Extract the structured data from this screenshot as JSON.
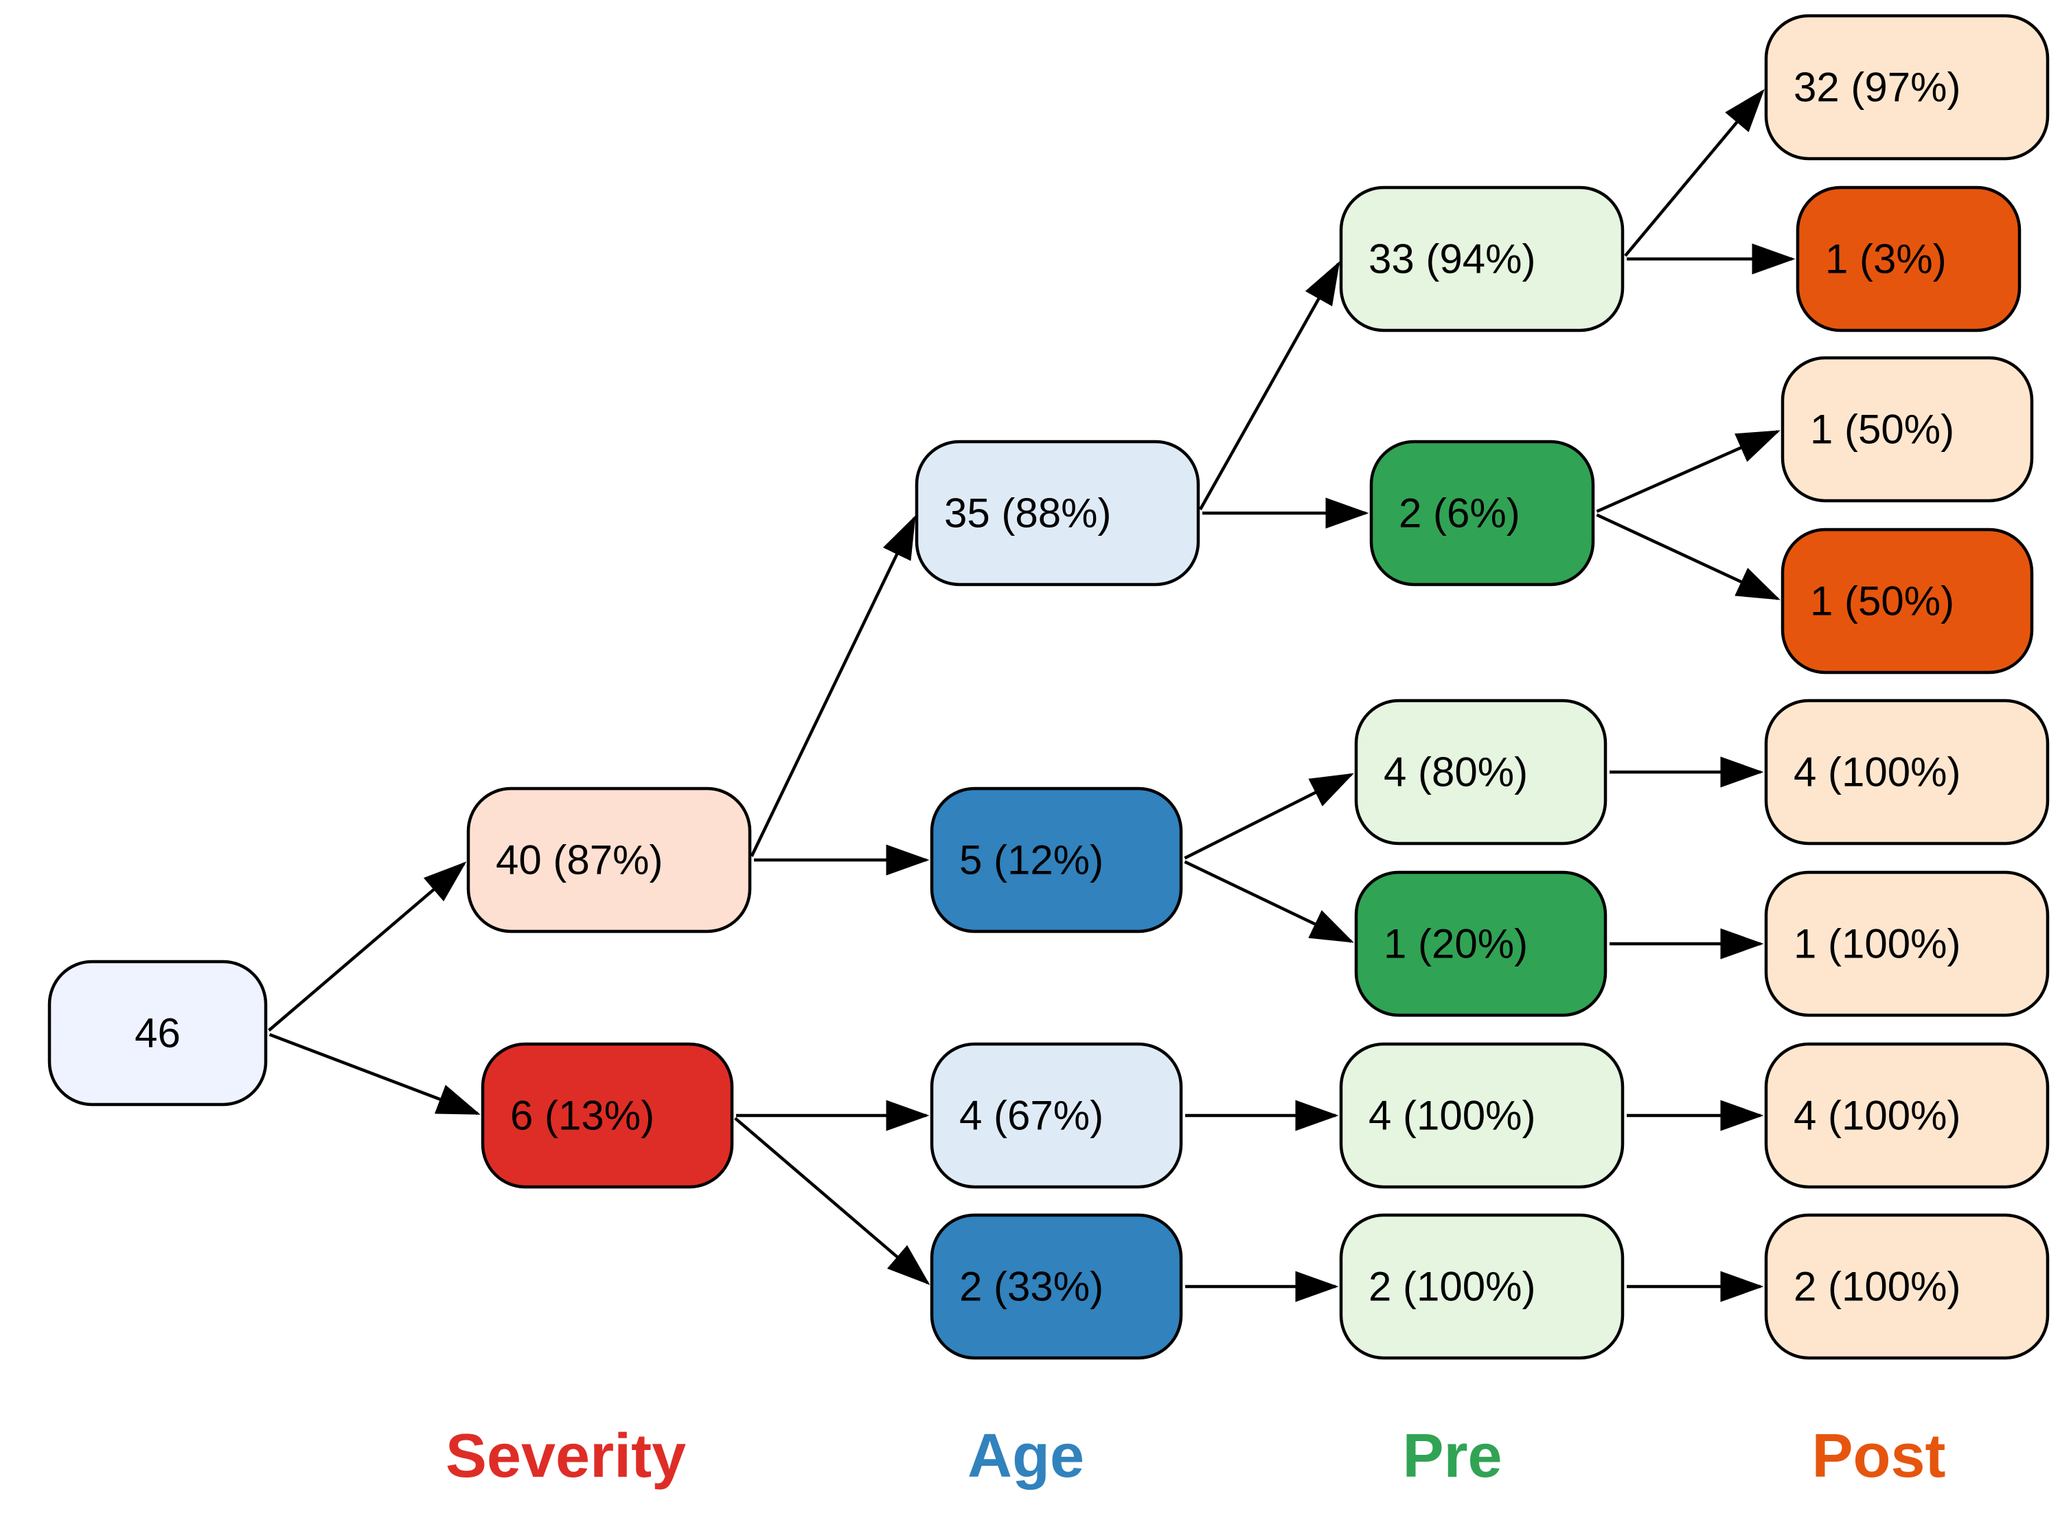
{
  "diagram": {
    "levels": [
      {
        "id": "severity",
        "label": "Severity",
        "color": "#de2d26"
      },
      {
        "id": "age",
        "label": "Age",
        "color": "#3182bd"
      },
      {
        "id": "pre",
        "label": "Pre",
        "color": "#31a354"
      },
      {
        "id": "post",
        "label": "Post",
        "color": "#e6550d"
      }
    ],
    "colors": {
      "root": "#eff3ff",
      "severity_light": "#fee0d2",
      "severity_dark": "#de2d26",
      "age_light": "#deebf7",
      "age_dark": "#3182bd",
      "pre_light": "#e5f5e0",
      "pre_dark": "#31a354",
      "post_light": "#fee6ce",
      "post_dark": "#e6550d"
    },
    "nodes": [
      {
        "id": "root",
        "label": "46",
        "fill": "root"
      },
      {
        "id": "s1",
        "label": "40 (87%)",
        "fill": "severity_light"
      },
      {
        "id": "s2",
        "label": "6 (13%)",
        "fill": "severity_dark"
      },
      {
        "id": "a1",
        "label": "35 (88%)",
        "fill": "age_light"
      },
      {
        "id": "a2",
        "label": "5 (12%)",
        "fill": "age_dark"
      },
      {
        "id": "a3",
        "label": "4 (67%)",
        "fill": "age_light"
      },
      {
        "id": "a4",
        "label": "2 (33%)",
        "fill": "age_dark"
      },
      {
        "id": "p1",
        "label": "33 (94%)",
        "fill": "pre_light"
      },
      {
        "id": "p2",
        "label": "2 (6%)",
        "fill": "pre_dark"
      },
      {
        "id": "p3",
        "label": "4 (80%)",
        "fill": "pre_light"
      },
      {
        "id": "p4",
        "label": "1 (20%)",
        "fill": "pre_dark"
      },
      {
        "id": "p5",
        "label": "4 (100%)",
        "fill": "pre_light"
      },
      {
        "id": "p6",
        "label": "2 (100%)",
        "fill": "pre_light"
      },
      {
        "id": "q1",
        "label": "32 (97%)",
        "fill": "post_light"
      },
      {
        "id": "q2",
        "label": "1 (3%)",
        "fill": "post_dark"
      },
      {
        "id": "q3",
        "label": "1 (50%)",
        "fill": "post_light"
      },
      {
        "id": "q4",
        "label": "1 (50%)",
        "fill": "post_dark"
      },
      {
        "id": "q5",
        "label": "4 (100%)",
        "fill": "post_light"
      },
      {
        "id": "q6",
        "label": "1 (100%)",
        "fill": "post_light"
      },
      {
        "id": "q7",
        "label": "4 (100%)",
        "fill": "post_light"
      },
      {
        "id": "q8",
        "label": "2 (100%)",
        "fill": "post_light"
      }
    ],
    "edges": [
      [
        "root",
        "s1"
      ],
      [
        "root",
        "s2"
      ],
      [
        "s1",
        "a1"
      ],
      [
        "s1",
        "a2"
      ],
      [
        "s2",
        "a3"
      ],
      [
        "s2",
        "a4"
      ],
      [
        "a1",
        "p1"
      ],
      [
        "a1",
        "p2"
      ],
      [
        "a2",
        "p3"
      ],
      [
        "a2",
        "p4"
      ],
      [
        "a3",
        "p5"
      ],
      [
        "a4",
        "p6"
      ],
      [
        "p1",
        "q1"
      ],
      [
        "p1",
        "q2"
      ],
      [
        "p2",
        "q3"
      ],
      [
        "p2",
        "q4"
      ],
      [
        "p3",
        "q5"
      ],
      [
        "p4",
        "q6"
      ],
      [
        "p5",
        "q7"
      ],
      [
        "p6",
        "q8"
      ]
    ]
  }
}
